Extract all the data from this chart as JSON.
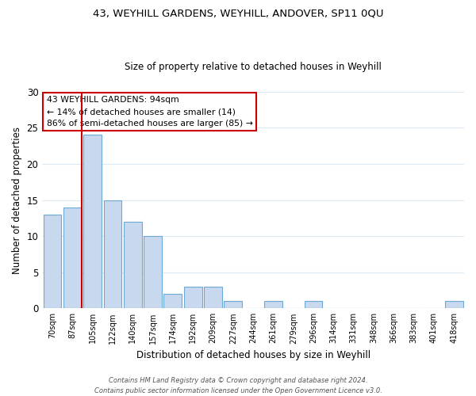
{
  "title": "43, WEYHILL GARDENS, WEYHILL, ANDOVER, SP11 0QU",
  "subtitle": "Size of property relative to detached houses in Weyhill",
  "xlabel": "Distribution of detached houses by size in Weyhill",
  "ylabel": "Number of detached properties",
  "bar_labels": [
    "70sqm",
    "87sqm",
    "105sqm",
    "122sqm",
    "140sqm",
    "157sqm",
    "174sqm",
    "192sqm",
    "209sqm",
    "227sqm",
    "244sqm",
    "261sqm",
    "279sqm",
    "296sqm",
    "314sqm",
    "331sqm",
    "348sqm",
    "366sqm",
    "383sqm",
    "401sqm",
    "418sqm"
  ],
  "bar_values": [
    13,
    14,
    24,
    15,
    12,
    10,
    2,
    3,
    3,
    1,
    0,
    1,
    0,
    1,
    0,
    0,
    0,
    0,
    0,
    0,
    1
  ],
  "bar_color": "#c8d8ee",
  "bar_edge_color": "#6aaad4",
  "vline_color": "#cc0000",
  "annotation_title": "43 WEYHILL GARDENS: 94sqm",
  "annotation_line1": "← 14% of detached houses are smaller (14)",
  "annotation_line2": "86% of semi-detached houses are larger (85) →",
  "annotation_box_color": "#ffffff",
  "annotation_box_edge": "#cc0000",
  "ylim": [
    0,
    30
  ],
  "yticks": [
    0,
    5,
    10,
    15,
    20,
    25,
    30
  ],
  "footer1": "Contains HM Land Registry data © Crown copyright and database right 2024.",
  "footer2": "Contains public sector information licensed under the Open Government Licence v3.0.",
  "bg_color": "#ffffff",
  "grid_color": "#ddeaf5"
}
